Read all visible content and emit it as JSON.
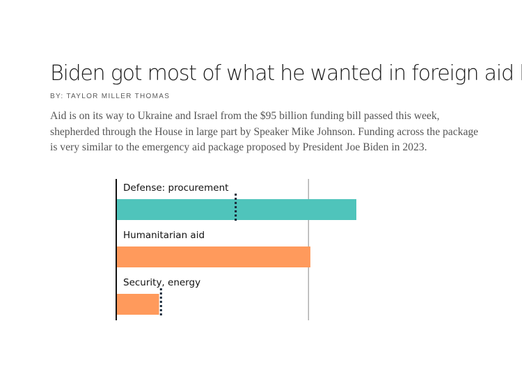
{
  "article": {
    "headline": "Biden got most of what he wanted in foreign aid bill",
    "byline": "BY: TAYLOR MILLER THOMAS",
    "dek": "Aid is on its way to Ukraine and Israel from the $95 billion funding bill passed this week, shepherded through the House in large part by Speaker Mike Johnson. Funding across the package is very similar to the emergency aid package proposed by President Joe Biden in 2023."
  },
  "colors": {
    "teal": "#4fc4bb",
    "orange": "#ff9a5c",
    "marker": "#1a2a3a",
    "reference_line": "#888888",
    "axis": "#111111"
  },
  "chart_data": {
    "type": "bar",
    "orientation": "horizontal",
    "categories": [
      "Defense: procurement",
      "Humanitarian aid",
      "Security, energy"
    ],
    "values": [
      1.25,
      1.01,
      0.22
    ],
    "biden_proposal_markers": [
      0.62,
      null,
      0.23
    ],
    "bar_colors": [
      "#4fc4bb",
      "#ff9a5c",
      "#ff9a5c"
    ],
    "reference_line_value": 1.0,
    "xlim": [
      0,
      1.25
    ],
    "title": "",
    "xlabel": "",
    "ylabel": ""
  }
}
